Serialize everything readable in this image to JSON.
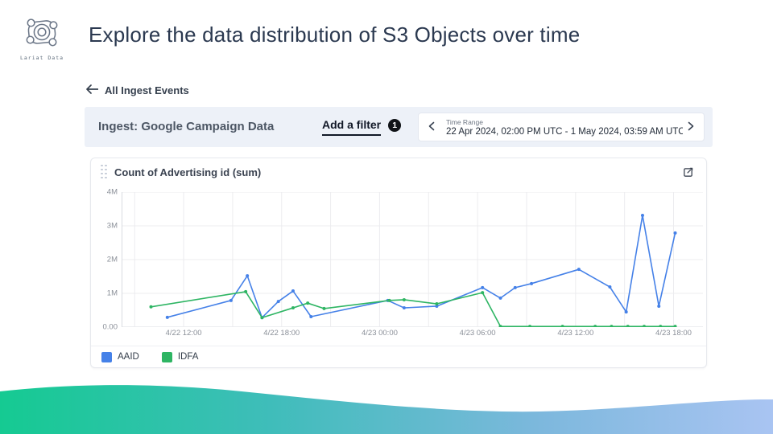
{
  "slide": {
    "title": "Explore the data distribution of S3 Objects over time"
  },
  "logo": {
    "caption": "Lariat Data"
  },
  "nav": {
    "back_label": "All Ingest Events"
  },
  "filter_bar": {
    "ingest_label": "Ingest: Google Campaign Data",
    "add_filter_label": "Add a filter",
    "filter_count": "1",
    "time_range_label": "Time Range",
    "time_range_value": "22 Apr 2024, 02:00 PM UTC - 1 May 2024, 03:59 AM UTC"
  },
  "chart_card": {
    "title": "Count of Advertising id (sum)"
  },
  "icons": {
    "logo": "lariat-lasso-icon",
    "back": "arrow-left-icon",
    "time_prev": "chevron-left-icon",
    "time_next": "chevron-right-icon",
    "card_drag": "drag-handle-icon",
    "card_edit": "edit-box-icon"
  },
  "colors": {
    "accent_blue": "#4581e8",
    "accent_green": "#2eb563",
    "filter_bar_bg": "#edf1f8",
    "badge_bg": "#101317",
    "gridline": "#ececef",
    "axis_line": "#d8dbe0",
    "wave_gradient": [
      "#15ca92",
      "#3fbdba",
      "#7db8dd",
      "#a9c4f2"
    ]
  },
  "chart_data": {
    "type": "line",
    "title": "Count of Advertising id (sum)",
    "x_unit": "hours relative to 4/22 12:00 UTC",
    "y_unit": "count (millions)",
    "xlim": [
      -3.8,
      31.8
    ],
    "ylim": [
      0,
      4
    ],
    "grid": true,
    "legend_position": "bottom-left",
    "y_ticks": [
      {
        "v": 0,
        "label": "0.00"
      },
      {
        "v": 1,
        "label": "1M"
      },
      {
        "v": 2,
        "label": "2M"
      },
      {
        "v": 3,
        "label": "3M"
      },
      {
        "v": 4,
        "label": "4M"
      }
    ],
    "x_ticks": [
      {
        "v": 0,
        "label": "4/22 12:00"
      },
      {
        "v": 6,
        "label": "4/22 18:00"
      },
      {
        "v": 12,
        "label": "4/23 00:00"
      },
      {
        "v": 18,
        "label": "4/23 06:00"
      },
      {
        "v": 24,
        "label": "4/23 12:00"
      },
      {
        "v": 30,
        "label": "4/23 18:00"
      }
    ],
    "x_gridlines": [
      -3,
      0,
      3,
      6,
      9,
      12,
      15,
      18,
      21,
      24,
      27,
      30
    ],
    "series": [
      {
        "name": "AAID",
        "color": "#4581e8",
        "points": [
          [
            -1,
            0.29
          ],
          [
            2.9,
            0.79
          ],
          [
            3.9,
            1.52
          ],
          [
            4.8,
            0.28
          ],
          [
            5.8,
            0.76
          ],
          [
            6.7,
            1.07
          ],
          [
            7.8,
            0.31
          ],
          [
            12.5,
            0.79
          ],
          [
            13.5,
            0.57
          ],
          [
            15.5,
            0.62
          ],
          [
            18.3,
            1.17
          ],
          [
            19.4,
            0.86
          ],
          [
            20.3,
            1.17
          ],
          [
            21.3,
            1.29
          ],
          [
            24.2,
            1.71
          ],
          [
            26.1,
            1.19
          ],
          [
            27.1,
            0.45
          ],
          [
            28.1,
            3.31
          ],
          [
            29.1,
            0.62
          ],
          [
            30.1,
            2.79
          ]
        ]
      },
      {
        "name": "IDFA",
        "color": "#2eb563",
        "points": [
          [
            -2,
            0.6
          ],
          [
            3.8,
            1.05
          ],
          [
            4.8,
            0.28
          ],
          [
            6.7,
            0.57
          ],
          [
            7.6,
            0.71
          ],
          [
            8.6,
            0.55
          ],
          [
            12.6,
            0.79
          ],
          [
            13.5,
            0.81
          ],
          [
            15.5,
            0.69
          ],
          [
            18.3,
            1.02
          ],
          [
            19.4,
            0.02
          ],
          [
            21.2,
            0.02
          ],
          [
            23.2,
            0.02
          ],
          [
            25.2,
            0.02
          ],
          [
            26.2,
            0.02
          ],
          [
            27.2,
            0.02
          ],
          [
            28.2,
            0.02
          ],
          [
            29.2,
            0.02
          ],
          [
            30.1,
            0.02
          ]
        ]
      }
    ]
  }
}
